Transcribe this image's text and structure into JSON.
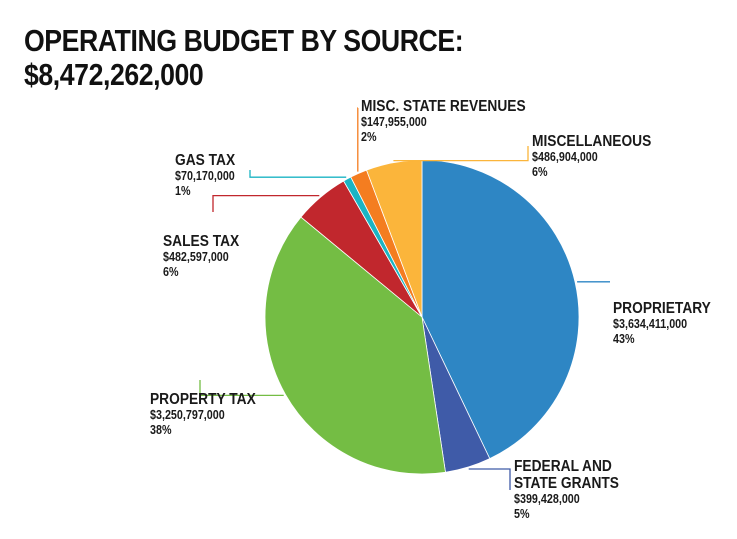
{
  "title": {
    "line1": "OPERATING BUDGET BY SOURCE:",
    "line2": "$8,472,262,000"
  },
  "chart_data": {
    "type": "pie",
    "title": "OPERATING BUDGET BY SOURCE: $8,472,262,000",
    "total": 8472262000,
    "start_angle_deg": 0,
    "direction": "clockwise",
    "slices": [
      {
        "key": "proprietary",
        "label_lines": [
          "PROPRIETARY"
        ],
        "amount_text": "$3,634,411,000",
        "percent_text": "43%",
        "value": 3634411000,
        "color": "#2e86c4"
      },
      {
        "key": "federal",
        "label_lines": [
          "FEDERAL AND",
          "STATE GRANTS"
        ],
        "amount_text": "$399,428,000",
        "percent_text": "5%",
        "value": 399428000,
        "color": "#3f5ba8"
      },
      {
        "key": "property",
        "label_lines": [
          "PROPERTY TAX"
        ],
        "amount_text": "$3,250,797,000",
        "percent_text": "38%",
        "value": 3250797000,
        "color": "#74bd44"
      },
      {
        "key": "sales",
        "label_lines": [
          "SALES TAX"
        ],
        "amount_text": "$482,597,000",
        "percent_text": "6%",
        "value": 482597000,
        "color": "#c1272d"
      },
      {
        "key": "gas",
        "label_lines": [
          "GAS TAX"
        ],
        "amount_text": "$70,170,000",
        "percent_text": "1%",
        "value": 70170000,
        "color": "#1bb4c4"
      },
      {
        "key": "misc_state",
        "label_lines": [
          "MISC. STATE REVENUES"
        ],
        "amount_text": "$147,955,000",
        "percent_text": "2%",
        "value": 147955000,
        "color": "#f47d20"
      },
      {
        "key": "misc",
        "label_lines": [
          "MISCELLANEOUS"
        ],
        "amount_text": "$486,904,000",
        "percent_text": "6%",
        "value": 486904000,
        "color": "#fbb53b"
      }
    ]
  }
}
